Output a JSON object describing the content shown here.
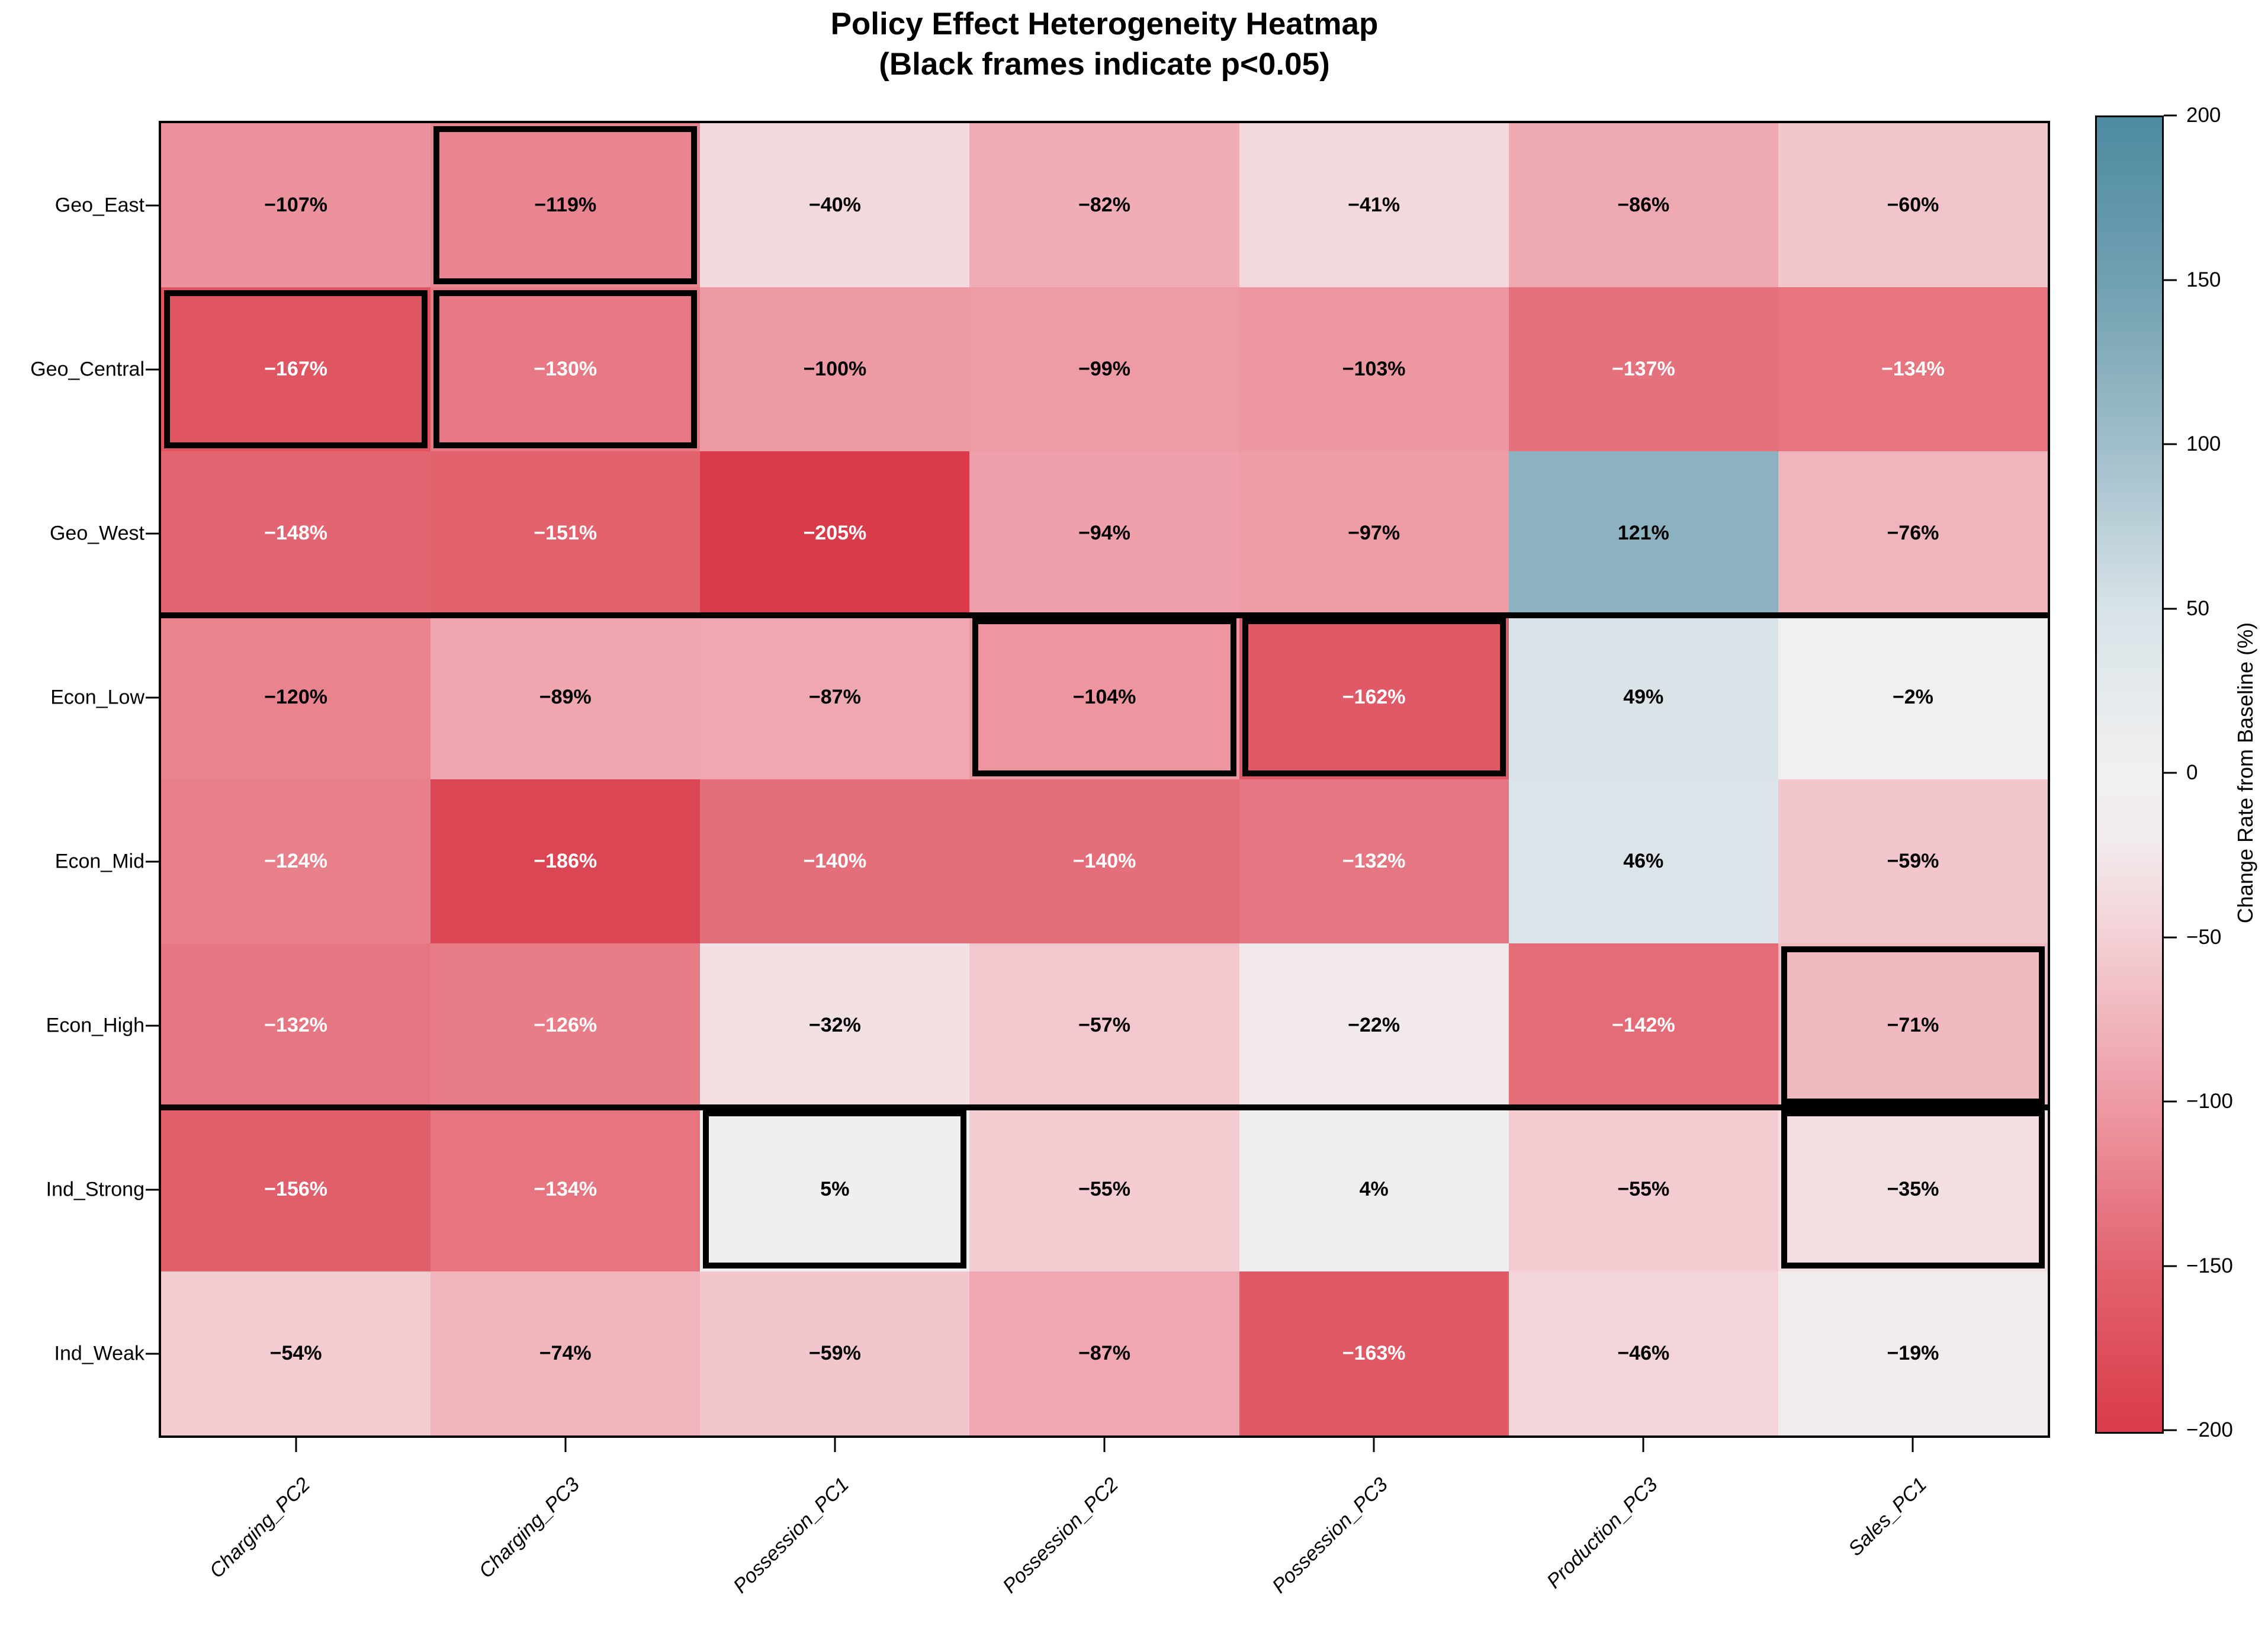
{
  "chart_data": {
    "type": "heatmap",
    "title": "Policy Effect Heterogeneity Heatmap",
    "subtitle": "(Black frames indicate p<0.05)",
    "rows": [
      "Geo_East",
      "Geo_Central",
      "Geo_West",
      "Econ_Low",
      "Econ_Mid",
      "Econ_High",
      "Ind_Strong",
      "Ind_Weak"
    ],
    "columns": [
      "Charging_PC2",
      "Charging_PC3",
      "Possession_PC1",
      "Possession_PC2",
      "Possession_PC3",
      "Production_PC3",
      "Sales_PC1"
    ],
    "values_pct": [
      [
        -107,
        -119,
        -40,
        -82,
        -41,
        -86,
        -60
      ],
      [
        -167,
        -130,
        -100,
        -99,
        -103,
        -137,
        -134
      ],
      [
        -148,
        -151,
        -205,
        -94,
        -97,
        121,
        -76
      ],
      [
        -120,
        -89,
        -87,
        -104,
        -162,
        49,
        -2
      ],
      [
        -124,
        -186,
        -140,
        -140,
        -132,
        46,
        -59
      ],
      [
        -132,
        -126,
        -32,
        -57,
        -22,
        -142,
        -71
      ],
      [
        -156,
        -134,
        5,
        -55,
        4,
        -55,
        -35
      ],
      [
        -54,
        -74,
        -59,
        -87,
        -163,
        -46,
        -19
      ]
    ],
    "significant_cells": [
      [
        0,
        1
      ],
      [
        1,
        0
      ],
      [
        1,
        1
      ],
      [
        3,
        3
      ],
      [
        3,
        4
      ],
      [
        5,
        6
      ],
      [
        6,
        2
      ],
      [
        6,
        6
      ]
    ],
    "group_separators_after_rows": [
      2,
      5
    ],
    "colorbar": {
      "label": "Change Rate from Baseline (%)",
      "tick_values": [
        200,
        150,
        100,
        50,
        0,
        -50,
        -100,
        -150,
        -200
      ],
      "vmin": -200,
      "vmax": 200
    },
    "colormap_stops": [
      [
        -200,
        "#d93b4a"
      ],
      [
        -150,
        "#e2636f"
      ],
      [
        -100,
        "#ee9aa4"
      ],
      [
        -50,
        "#f3d0d5"
      ],
      [
        -20,
        "#f2ebec"
      ],
      [
        0,
        "#f1f0f0"
      ],
      [
        50,
        "#d8e3e8"
      ],
      [
        100,
        "#a0beca"
      ],
      [
        150,
        "#70a0b1"
      ],
      [
        200,
        "#4d8ba1"
      ]
    ],
    "colors": {
      "background": "#ffffff",
      "frame": "#000000",
      "cell_text_dark": "#000000",
      "cell_text_light": "#ffffff"
    }
  }
}
